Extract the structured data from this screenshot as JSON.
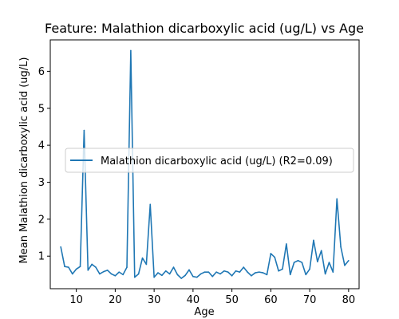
{
  "chart_data": {
    "type": "line",
    "title": "Feature: Malathion dicarboxylic acid (ug/L) vs Age",
    "xlabel": "Age",
    "ylabel": "Mean Malathion dicarboxylic acid (ug/L)",
    "xlim": [
      3.3,
      82.7
    ],
    "ylim": [
      0.12,
      6.85
    ],
    "xticks": [
      10,
      20,
      30,
      40,
      50,
      60,
      70,
      80
    ],
    "yticks": [
      1,
      2,
      3,
      4,
      5,
      6
    ],
    "grid": false,
    "legend_position": "center-right",
    "series": [
      {
        "name": "Malathion dicarboxylic acid (ug/L) (R2=0.09)",
        "color": "#1f77b4",
        "x": [
          6,
          7,
          8,
          9,
          10,
          11,
          12,
          13,
          14,
          15,
          16,
          17,
          18,
          19,
          20,
          21,
          22,
          23,
          24,
          25,
          26,
          27,
          28,
          29,
          30,
          31,
          32,
          33,
          34,
          35,
          36,
          37,
          38,
          39,
          40,
          41,
          42,
          43,
          44,
          45,
          46,
          47,
          48,
          49,
          50,
          51,
          52,
          53,
          54,
          55,
          56,
          57,
          58,
          59,
          60,
          61,
          62,
          63,
          64,
          65,
          66,
          67,
          68,
          69,
          70,
          71,
          72,
          73,
          74,
          75,
          76,
          77,
          78,
          79,
          80
        ],
        "y": [
          1.25,
          0.72,
          0.7,
          0.52,
          0.65,
          0.72,
          4.4,
          0.62,
          0.78,
          0.7,
          0.52,
          0.58,
          0.62,
          0.52,
          0.47,
          0.57,
          0.5,
          0.7,
          6.56,
          0.43,
          0.52,
          0.95,
          0.78,
          2.4,
          0.43,
          0.55,
          0.48,
          0.6,
          0.52,
          0.7,
          0.5,
          0.4,
          0.48,
          0.63,
          0.45,
          0.43,
          0.52,
          0.57,
          0.57,
          0.45,
          0.57,
          0.52,
          0.6,
          0.57,
          0.47,
          0.6,
          0.57,
          0.7,
          0.57,
          0.47,
          0.55,
          0.57,
          0.55,
          0.5,
          1.07,
          0.97,
          0.6,
          0.65,
          1.33,
          0.5,
          0.83,
          0.88,
          0.83,
          0.5,
          0.65,
          1.43,
          0.85,
          1.15,
          0.52,
          0.83,
          0.57,
          2.55,
          1.25,
          0.75,
          0.88
        ]
      }
    ]
  }
}
